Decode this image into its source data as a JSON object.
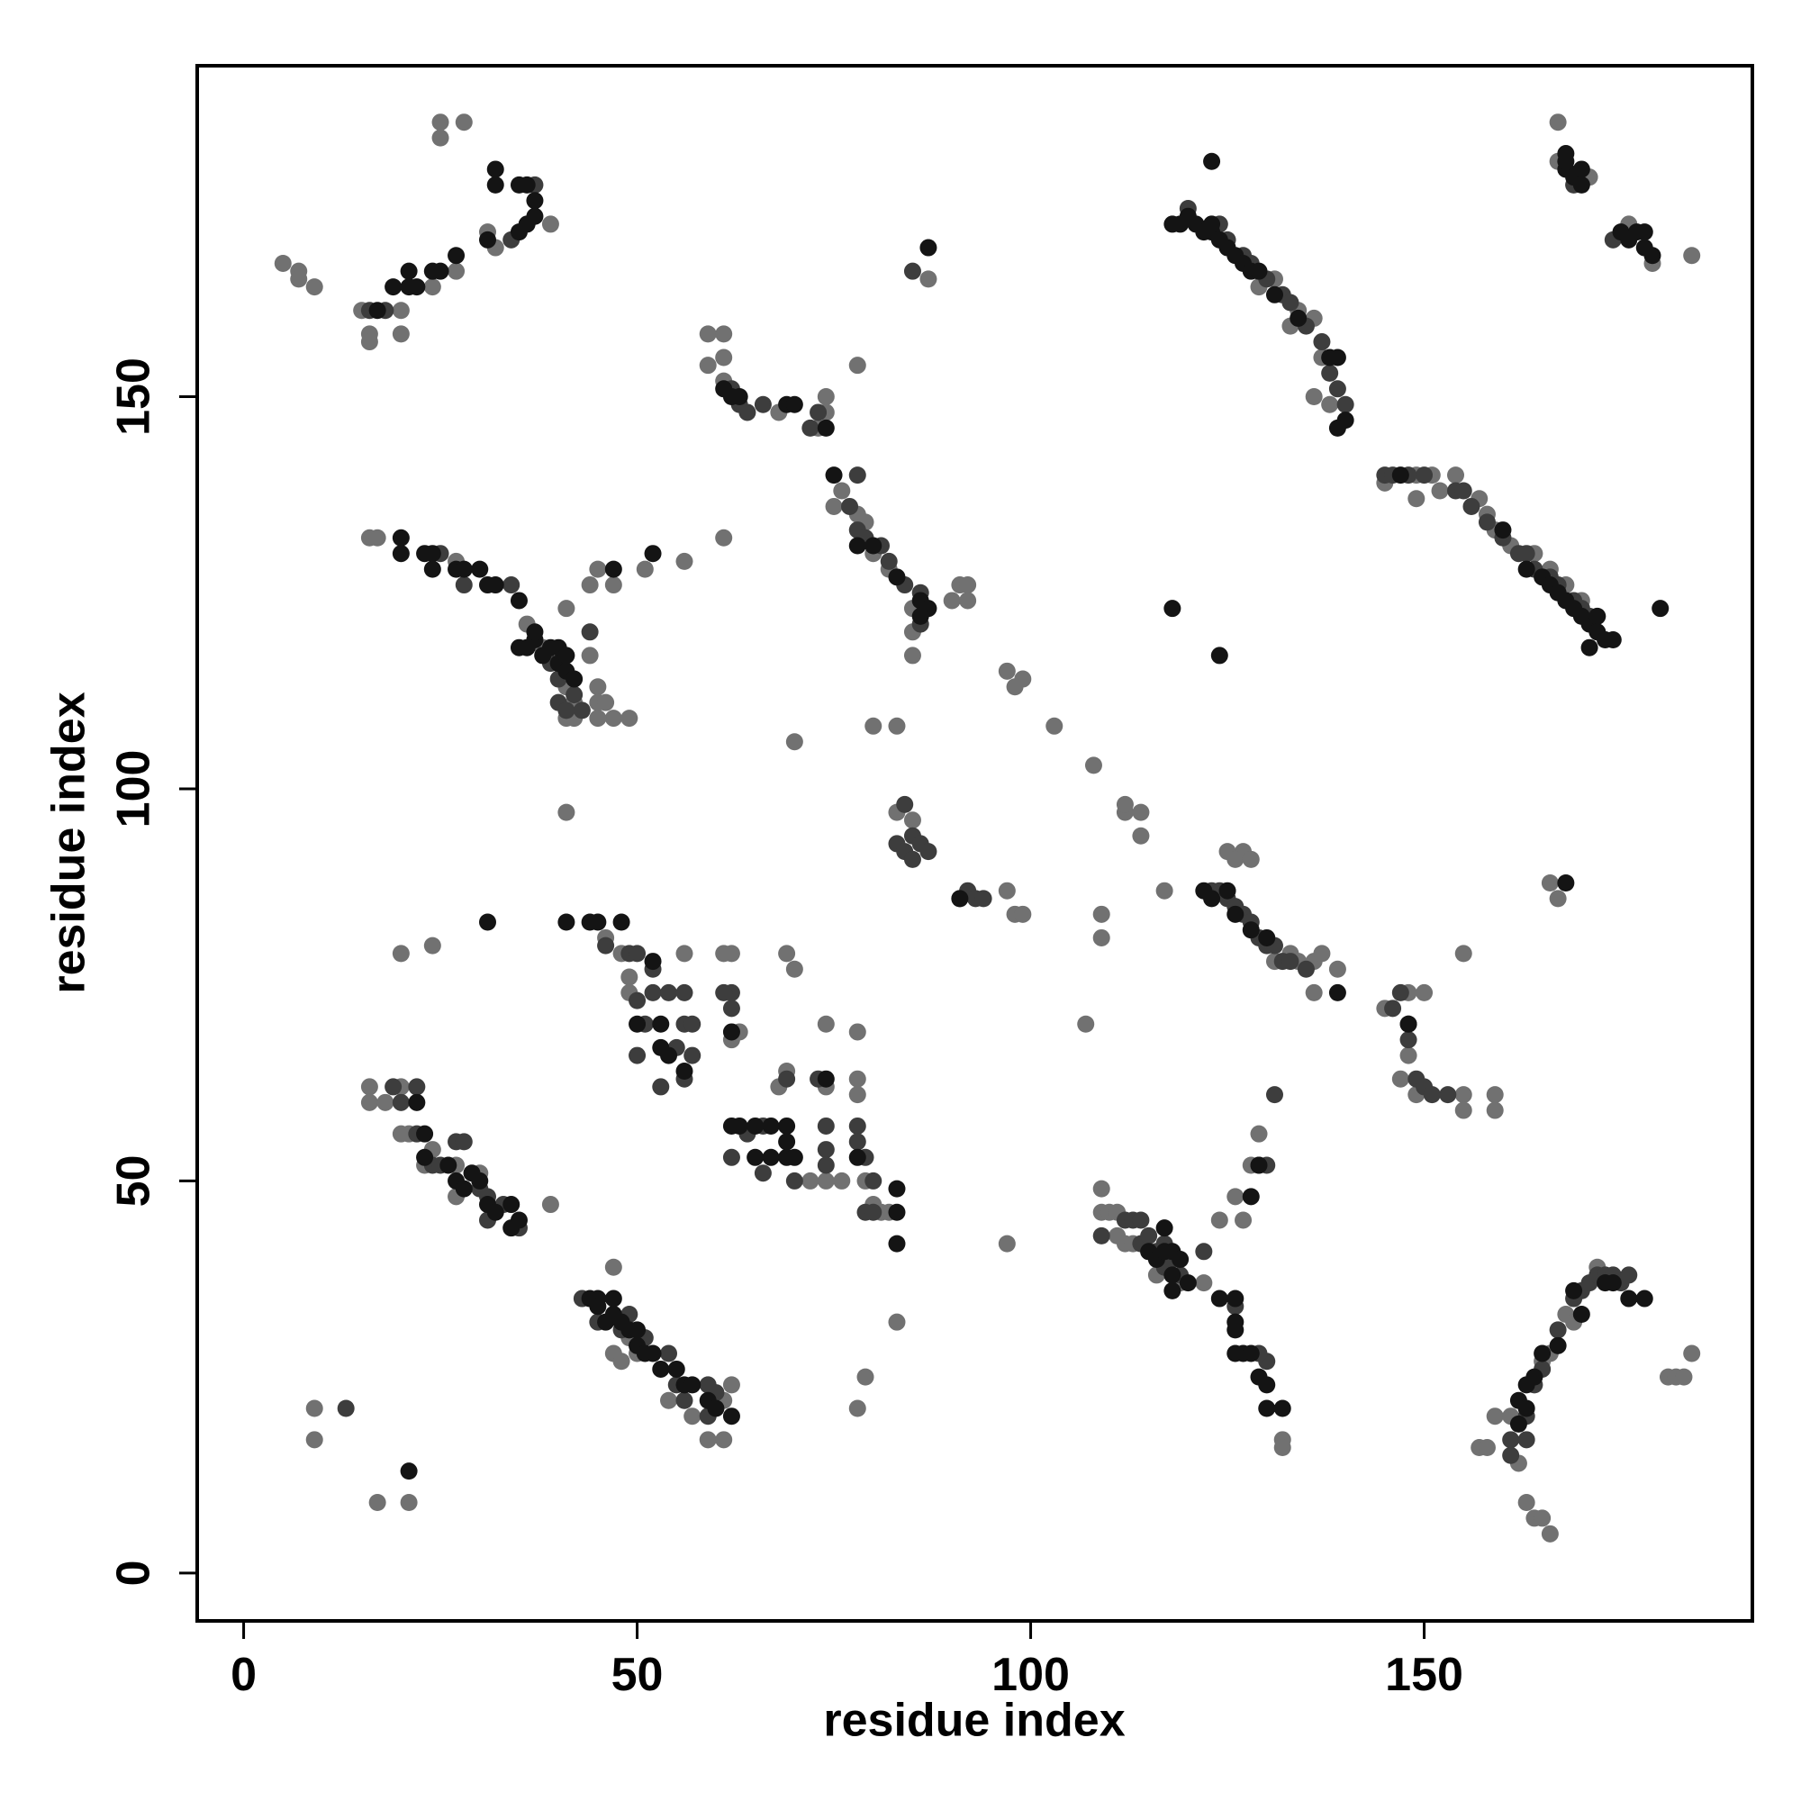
{
  "chart_data": {
    "type": "scatter",
    "xlabel": "residue index",
    "ylabel": "residue index",
    "xlim": [
      -5.9,
      191.7
    ],
    "ylim": [
      -6.1,
      192.2
    ],
    "xticks": [
      0,
      50,
      100,
      150
    ],
    "yticks": [
      0,
      50,
      100,
      150
    ],
    "series": [
      {
        "color": "#717171",
        "x": [
          25,
          25,
          28,
          5,
          7,
          7,
          9,
          15,
          20,
          16,
          16,
          20,
          24,
          27,
          31,
          32,
          39,
          129,
          131,
          133,
          134,
          136,
          137,
          136,
          138,
          167,
          167,
          171,
          176,
          179,
          184,
          59,
          61,
          59,
          61,
          61,
          68,
          74,
          74,
          78,
          73,
          61,
          76,
          75,
          78,
          79,
          80,
          82,
          85,
          85,
          85,
          87,
          90,
          92,
          91,
          92,
          16,
          17,
          27,
          36,
          41,
          44,
          45,
          47,
          51,
          56,
          37,
          38,
          41,
          42,
          45,
          45,
          46,
          47,
          49,
          41,
          42,
          45,
          44,
          145,
          149,
          151,
          152,
          149,
          154,
          157,
          158,
          159,
          161,
          164,
          166,
          168,
          170,
          70,
          80,
          83,
          97,
          99,
          98,
          103,
          108,
          41,
          83,
          85,
          112,
          112,
          114,
          114,
          97,
          98,
          99,
          109,
          109,
          117,
          107,
          155,
          166,
          167,
          125,
          127,
          126,
          128,
          133,
          134,
          136,
          137,
          136,
          139,
          131,
          145,
          148,
          150,
          148,
          147,
          149,
          155,
          155,
          159,
          159,
          46,
          48,
          49,
          49,
          56,
          61,
          62,
          63,
          62,
          20,
          24,
          69,
          70,
          68,
          69,
          74,
          78,
          78,
          72,
          74,
          76,
          79,
          80,
          81,
          82,
          74,
          78,
          83,
          97,
          16,
          16,
          18,
          20,
          21,
          23,
          24,
          27,
          27,
          30,
          39,
          20,
          47,
          47,
          48,
          49,
          50,
          54,
          57,
          59,
          61,
          62,
          61,
          79,
          78,
          9,
          9,
          17,
          21,
          109,
          109,
          110,
          111,
          111,
          112,
          113,
          115,
          116,
          119,
          122,
          132,
          132,
          124,
          126,
          127,
          128,
          129,
          157,
          158,
          159,
          162,
          163,
          164,
          165,
          166,
          161,
          165,
          166,
          168,
          169,
          172,
          181,
          182,
          183,
          184
        ],
        "values": [
          185,
          183,
          185,
          167,
          166,
          165,
          164,
          161,
          161,
          158,
          157,
          158,
          164,
          166,
          171,
          169,
          172,
          164,
          165,
          159,
          161,
          160,
          155,
          150,
          149,
          185,
          180,
          178,
          172,
          167,
          168,
          158,
          158,
          154,
          155,
          152,
          148,
          150,
          148,
          154,
          146,
          132,
          138,
          136,
          135,
          134,
          130,
          128,
          123,
          120,
          117,
          165,
          124,
          124,
          126,
          126,
          132,
          132,
          129,
          121,
          123,
          126,
          128,
          126,
          128,
          129,
          119,
          118,
          113,
          111,
          113,
          111,
          111,
          109,
          109,
          109,
          109,
          109,
          117,
          139,
          140,
          140,
          138,
          137,
          140,
          137,
          135,
          133,
          131,
          130,
          128,
          126,
          124,
          106,
          108,
          108,
          115,
          114,
          113,
          108,
          103,
          97,
          97,
          96,
          97,
          98,
          97,
          94,
          87,
          84,
          84,
          84,
          81,
          87,
          70,
          79,
          88,
          86,
          92,
          92,
          91,
          91,
          79,
          78,
          78,
          79,
          74,
          77,
          78,
          72,
          74,
          74,
          66,
          63,
          61,
          61,
          59,
          61,
          59,
          81,
          79,
          76,
          74,
          79,
          79,
          79,
          69,
          68,
          79,
          80,
          79,
          77,
          62,
          64,
          62,
          63,
          61,
          50,
          50,
          50,
          50,
          47,
          46,
          46,
          70,
          69,
          32,
          42,
          62,
          60,
          60,
          56,
          56,
          52,
          54,
          48,
          52,
          51,
          47,
          62,
          39,
          28,
          27,
          30,
          28,
          22,
          20,
          17,
          17,
          24,
          22,
          25,
          21,
          21,
          17,
          9,
          9,
          49,
          46,
          46,
          46,
          43,
          42,
          42,
          41,
          38,
          37,
          37,
          17,
          16,
          45,
          48,
          45,
          52,
          56,
          16,
          16,
          20,
          14,
          9,
          7,
          7,
          5,
          20,
          27,
          28,
          33,
          32,
          39,
          25,
          25,
          25,
          28
        ]
      },
      {
        "color": "#3d3d3d",
        "x": [
          16,
          18,
          37,
          34,
          120,
          124,
          125,
          127,
          128,
          130,
          132,
          133,
          135,
          137,
          138,
          139,
          140,
          169,
          174,
          62,
          63,
          64,
          66,
          73,
          72,
          78,
          77,
          78,
          79,
          81,
          82,
          84,
          86,
          86,
          85,
          25,
          28,
          34,
          39,
          40,
          42,
          43,
          40,
          41,
          44,
          145,
          146,
          148,
          150,
          154,
          155,
          156,
          158,
          160,
          162,
          163,
          164,
          166,
          167,
          169,
          170,
          171,
          83,
          84,
          85,
          86,
          87,
          91,
          92,
          93,
          94,
          84,
          85,
          123,
          124,
          125,
          126,
          127,
          128,
          129,
          130,
          131,
          132,
          133,
          135,
          146,
          147,
          148,
          148,
          149,
          150,
          151,
          153,
          46,
          49,
          50,
          52,
          50,
          51,
          52,
          54,
          56,
          56,
          57,
          57,
          55,
          50,
          53,
          56,
          62,
          61,
          62,
          62,
          64,
          66,
          66,
          70,
          74,
          74,
          74,
          78,
          78,
          79,
          80,
          79,
          80,
          69,
          73,
          19,
          20,
          22,
          24,
          25,
          27,
          28,
          30,
          31,
          31,
          33,
          35,
          22,
          43,
          45,
          48,
          49,
          51,
          54,
          55,
          56,
          59,
          60,
          59,
          13,
          109,
          112,
          113,
          114,
          114,
          115,
          116,
          117,
          118,
          119,
          117,
          129,
          130,
          131,
          122,
          126,
          130,
          129,
          161,
          161,
          163,
          163,
          164,
          165,
          167,
          169,
          170,
          171,
          172,
          173,
          174,
          175,
          176
        ],
        "values": [
          161,
          161,
          177,
          170,
          174,
          172,
          170,
          168,
          167,
          165,
          163,
          162,
          159,
          157,
          153,
          151,
          149,
          177,
          170,
          151,
          149,
          148,
          149,
          148,
          146,
          140,
          136,
          133,
          132,
          131,
          129,
          126,
          125,
          121,
          166,
          130,
          126,
          126,
          116,
          114,
          112,
          110,
          111,
          110,
          120,
          140,
          140,
          140,
          140,
          138,
          138,
          136,
          134,
          132,
          130,
          130,
          128,
          127,
          126,
          124,
          123,
          122,
          93,
          92,
          94,
          93,
          92,
          86,
          87,
          86,
          86,
          98,
          91,
          87,
          87,
          86,
          85,
          84,
          83,
          81,
          80,
          80,
          78,
          78,
          77,
          72,
          74,
          70,
          68,
          63,
          62,
          61,
          61,
          80,
          79,
          79,
          77,
          73,
          70,
          74,
          74,
          74,
          70,
          70,
          66,
          67,
          66,
          62,
          63,
          74,
          74,
          72,
          53,
          56,
          57,
          51,
          50,
          57,
          54,
          52,
          57,
          55,
          53,
          50,
          46,
          46,
          63,
          63,
          62,
          60,
          62,
          52,
          52,
          55,
          55,
          49,
          48,
          45,
          47,
          44,
          56,
          35,
          32,
          31,
          33,
          30,
          28,
          24,
          22,
          20,
          23,
          24,
          21,
          43,
          45,
          45,
          45,
          42,
          43,
          41,
          39,
          40,
          38,
          42,
          52,
          52,
          61,
          41,
          34,
          27,
          28,
          17,
          15,
          20,
          17,
          24,
          26,
          31,
          35,
          36,
          37,
          38,
          38,
          38,
          37,
          38
        ]
      },
      {
        "color": "#141414",
        "x": [
          19,
          21,
          21,
          22,
          24,
          25,
          27,
          31,
          32,
          32,
          35,
          36,
          37,
          35,
          36,
          37,
          17,
          123,
          118,
          119,
          120,
          121,
          122,
          123,
          124,
          125,
          126,
          127,
          128,
          129,
          131,
          134,
          138,
          139,
          140,
          139,
          123,
          168,
          168,
          169,
          170,
          170,
          168,
          175,
          176,
          177,
          178,
          178,
          179,
          61,
          62,
          63,
          69,
          70,
          74,
          75,
          78,
          80,
          83,
          86,
          87,
          86,
          87,
          20,
          20,
          23,
          24,
          24,
          27,
          28,
          30,
          31,
          32,
          35,
          35,
          36,
          37,
          37,
          38,
          39,
          40,
          40,
          41,
          41,
          42,
          47,
          52,
          147,
          160,
          163,
          165,
          166,
          167,
          168,
          169,
          170,
          171,
          172,
          172,
          173,
          174,
          171,
          180,
          118,
          124,
          168,
          91,
          122,
          123,
          125,
          126,
          128,
          130,
          139,
          148,
          41,
          44,
          45,
          48,
          52,
          50,
          53,
          53,
          54,
          56,
          62,
          31,
          62,
          63,
          65,
          67,
          69,
          69,
          67,
          69,
          70,
          74,
          78,
          83,
          83,
          83,
          65,
          22,
          23,
          23,
          26,
          27,
          28,
          29,
          30,
          31,
          32,
          34,
          34,
          35,
          44,
          45,
          45,
          46,
          47,
          48,
          49,
          50,
          50,
          51,
          52,
          53,
          55,
          56,
          57,
          59,
          60,
          62,
          47,
          21,
          115,
          116,
          117,
          118,
          119,
          118,
          120,
          118,
          117,
          124,
          126,
          126,
          126,
          127,
          128,
          129,
          130,
          130,
          132,
          129,
          128,
          126,
          162,
          163,
          164,
          165,
          167,
          169,
          170,
          173,
          174,
          176,
          178,
          162,
          163
        ],
        "values": [
          164,
          164,
          166,
          164,
          166,
          166,
          168,
          170,
          179,
          177,
          177,
          177,
          175,
          171,
          172,
          173,
          161,
          180,
          172,
          172,
          173,
          172,
          171,
          171,
          170,
          169,
          168,
          167,
          166,
          166,
          163,
          160,
          155,
          155,
          147,
          146,
          172,
          179,
          180,
          178,
          179,
          177,
          181,
          171,
          170,
          171,
          171,
          169,
          168,
          151,
          150,
          150,
          149,
          149,
          146,
          140,
          131,
          131,
          127,
          124,
          123,
          122,
          169,
          132,
          130,
          130,
          130,
          128,
          128,
          128,
          128,
          126,
          126,
          124,
          118,
          118,
          119,
          120,
          117,
          118,
          118,
          116,
          115,
          117,
          114,
          128,
          130,
          140,
          133,
          128,
          127,
          126,
          125,
          124,
          123,
          122,
          121,
          122,
          120,
          119,
          119,
          118,
          123,
          123,
          117,
          88,
          86,
          87,
          86,
          87,
          84,
          82,
          81,
          74,
          70,
          83,
          83,
          83,
          83,
          78,
          70,
          70,
          67,
          66,
          64,
          69,
          83,
          57,
          57,
          57,
          57,
          57,
          55,
          53,
          53,
          53,
          63,
          53,
          49,
          46,
          42,
          53,
          60,
          56,
          53,
          52,
          50,
          49,
          51,
          50,
          47,
          46,
          47,
          44,
          45,
          35,
          35,
          34,
          32,
          33,
          32,
          31,
          31,
          29,
          28,
          28,
          26,
          26,
          24,
          24,
          22,
          21,
          20,
          35,
          13,
          41,
          40,
          41,
          41,
          40,
          38,
          37,
          36,
          44,
          35,
          35,
          32,
          31,
          28,
          28,
          25,
          24,
          21,
          21,
          52,
          48,
          28,
          22,
          24,
          25,
          28,
          29,
          36,
          33,
          37,
          37,
          35,
          35,
          19,
          21
        ]
      }
    ]
  }
}
